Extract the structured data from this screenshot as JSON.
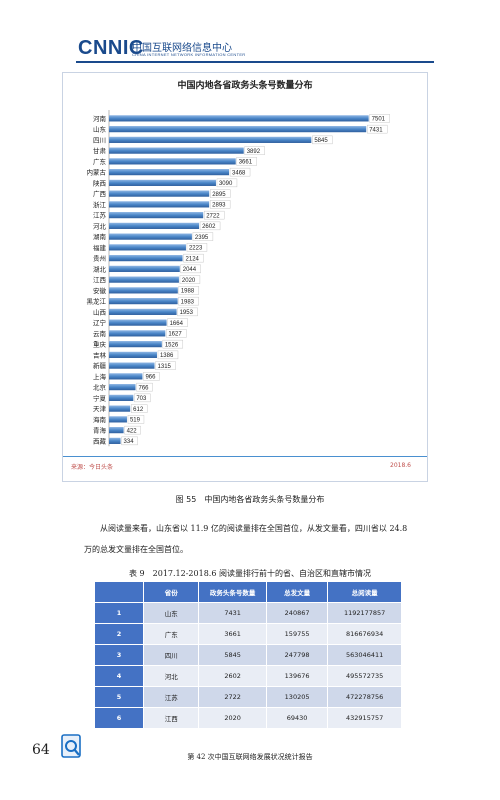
{
  "header": {
    "logo": "CNNIC",
    "org_cn": "中国互联网络信息中心",
    "org_en": "CHINA INTERNET NETWORK INFORMATION CENTER"
  },
  "colors": {
    "brand": "#1a4a8c",
    "bar": "#4a86c8",
    "source": "#c0504d",
    "table_header": "#4472c4"
  },
  "chart_data": {
    "type": "bar",
    "orientation": "horizontal",
    "title": "中国内地各省政务头条号数量分布",
    "categories": [
      "河南",
      "山东",
      "四川",
      "甘肃",
      "广东",
      "内蒙古",
      "陕西",
      "广西",
      "浙江",
      "江苏",
      "河北",
      "湖南",
      "福建",
      "贵州",
      "湖北",
      "江西",
      "安徽",
      "黑龙江",
      "山西",
      "辽宁",
      "云南",
      "重庆",
      "吉林",
      "新疆",
      "上海",
      "北京",
      "宁夏",
      "天津",
      "海南",
      "青海",
      "西藏"
    ],
    "values": [
      7501,
      7431,
      5845,
      3892,
      3661,
      3468,
      3090,
      2895,
      2893,
      2722,
      2602,
      2395,
      2223,
      2124,
      2044,
      2020,
      1988,
      1983,
      1953,
      1664,
      1627,
      1526,
      1386,
      1315,
      966,
      766,
      703,
      612,
      519,
      422,
      334
    ],
    "xlim": [
      0,
      7800
    ],
    "grid": false,
    "legend": "none",
    "data_labels": true
  },
  "source": {
    "label": "来源：今日头条",
    "date": "2018.6"
  },
  "figure_caption": "图 55　中国内地各省政务头条号数量分布",
  "paragraph": "从阅读量来看，山东省以 11.9 亿的阅读量排在全国首位，从发文量看，四川省以 24.8 万的总发文量排在全国首位。",
  "table": {
    "caption": "表 9　2017.12-2018.6 阅读量排行前十的省、自治区和直辖市情况",
    "headers": [
      "",
      "省份",
      "政务头条号数量",
      "总发文量",
      "总阅读量"
    ],
    "rows": [
      [
        "1",
        "山东",
        "7431",
        "240867",
        "1192177857"
      ],
      [
        "2",
        "广东",
        "3661",
        "159755",
        "816676934"
      ],
      [
        "3",
        "四川",
        "5845",
        "247798",
        "563046411"
      ],
      [
        "4",
        "河北",
        "2602",
        "139676",
        "495572735"
      ],
      [
        "5",
        "江苏",
        "2722",
        "130205",
        "472278756"
      ],
      [
        "6",
        "江西",
        "2020",
        "69430",
        "432915757"
      ]
    ]
  },
  "footer": {
    "page_number": "64",
    "report_title": "第 42 次中国互联网络发展状况统计报告",
    "icon": "cnnic-emblem-icon"
  }
}
